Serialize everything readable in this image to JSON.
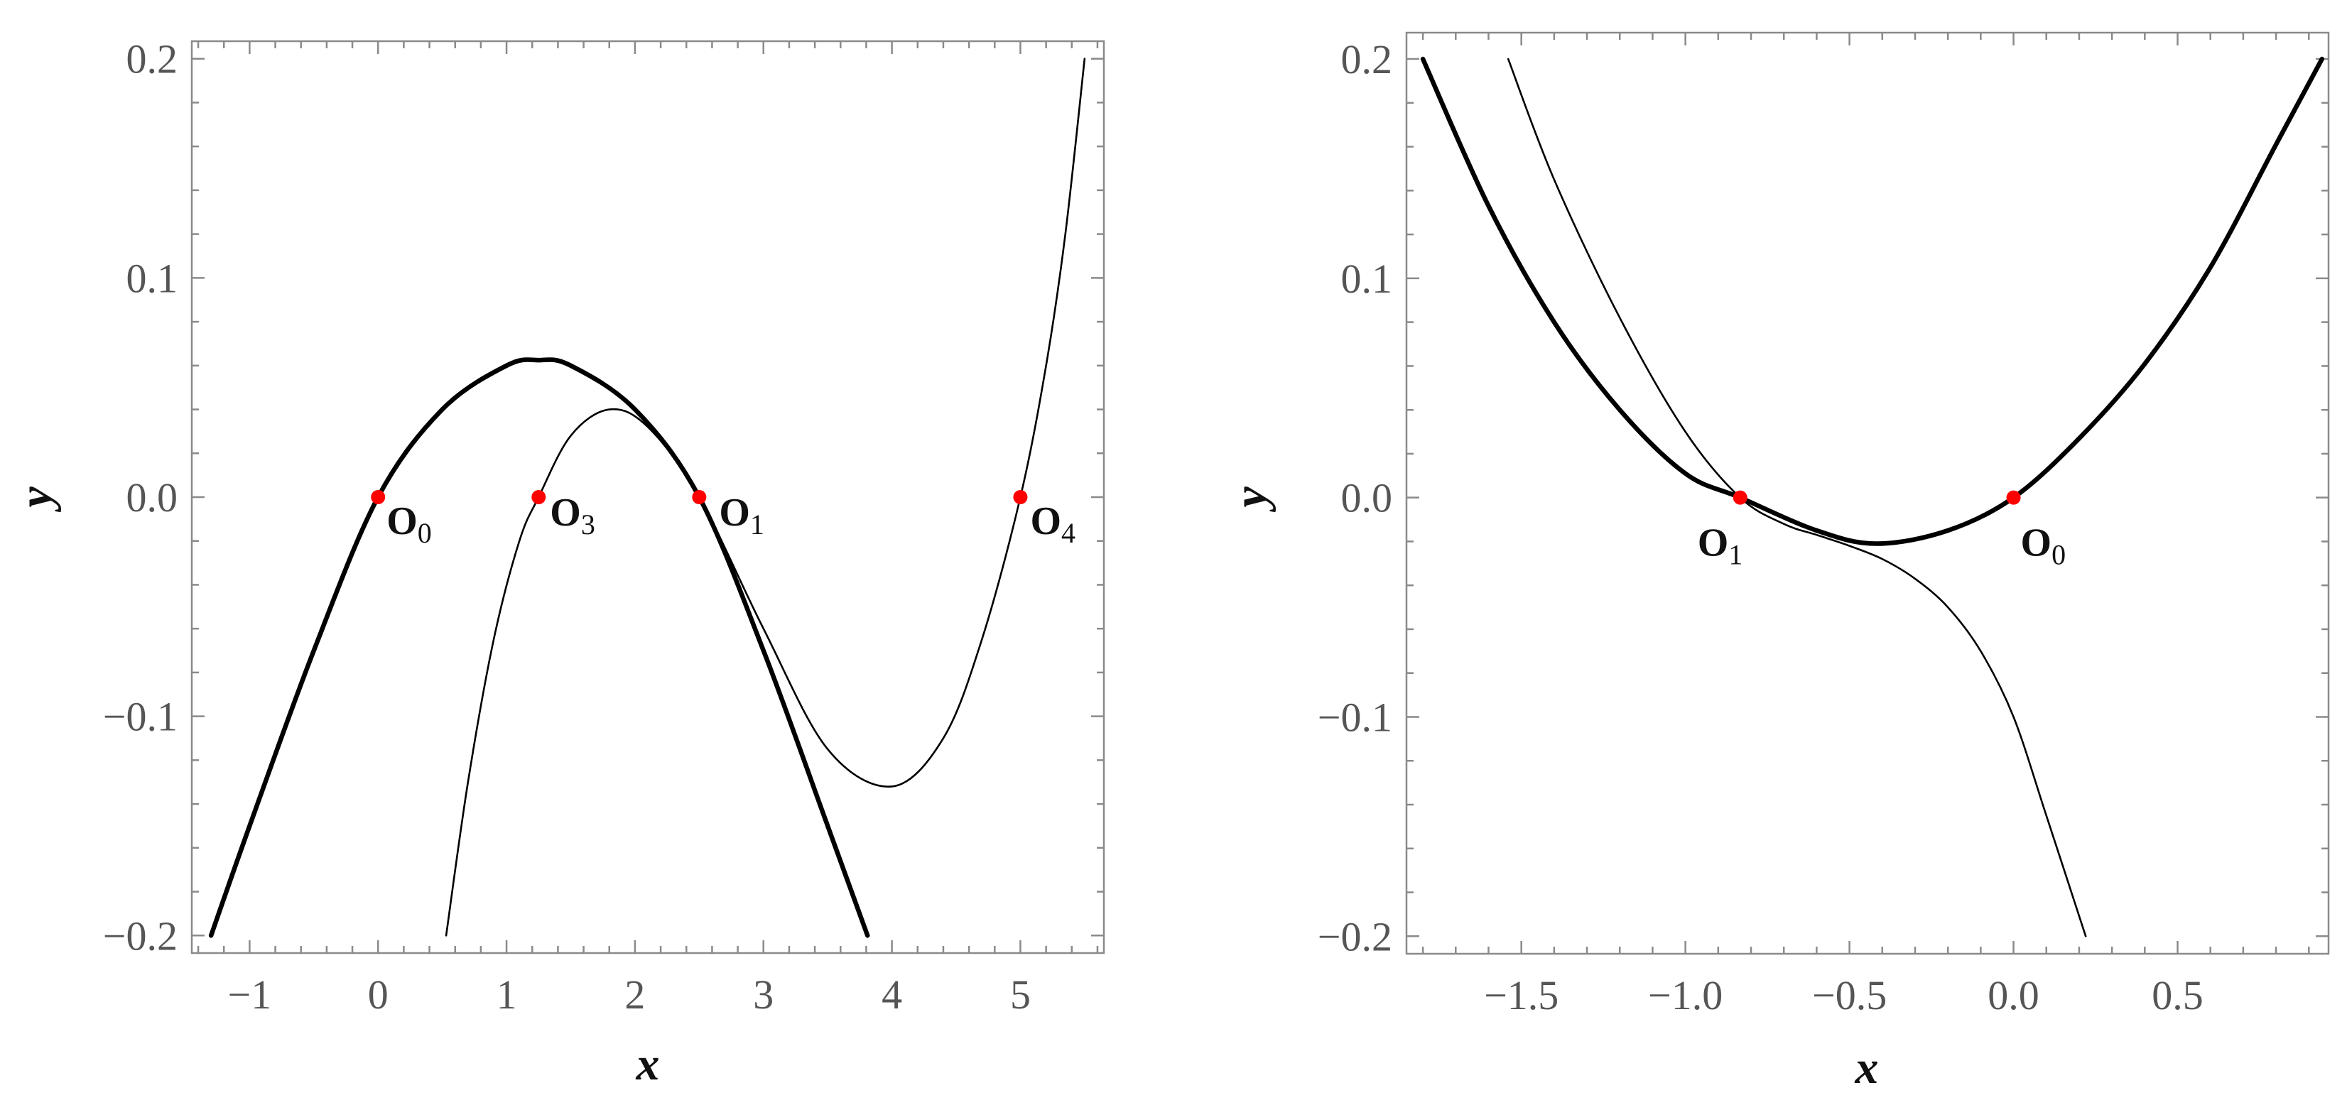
{
  "chart_data": [
    {
      "type": "line",
      "xlabel": "x",
      "ylabel": "y",
      "xlim": [
        -1.45,
        5.65
      ],
      "ylim": [
        -0.208,
        0.208
      ],
      "xticks": [
        -1,
        0,
        1,
        2,
        3,
        4,
        5
      ],
      "xtick_labels": [
        "−1",
        "0",
        "1",
        "2",
        "3",
        "4",
        "5"
      ],
      "yticks": [
        -0.2,
        -0.1,
        0.0,
        0.1,
        0.2
      ],
      "ytick_labels": [
        "−0.2",
        "−0.1",
        "0.0",
        "0.1",
        "0.2"
      ],
      "series": [
        {
          "style": "thick",
          "x": [
            -1.3,
            -1.0,
            -0.5,
            0.0,
            0.5,
            1.0,
            1.25,
            1.5,
            2.0,
            2.5,
            3.0,
            3.5,
            3.81
          ],
          "y": [
            -0.2,
            -0.15,
            -0.07,
            0.0,
            0.04,
            0.06,
            0.0625,
            0.06,
            0.04,
            0.0,
            -0.07,
            -0.15,
            -0.2
          ]
        },
        {
          "style": "thin",
          "x": [
            0.53,
            0.7,
            0.9,
            1.1,
            1.25,
            1.5,
            1.8,
            2.1,
            2.5,
            3.0,
            3.5,
            4.0,
            4.4,
            4.7,
            5.0,
            5.2,
            5.35,
            5.5
          ],
          "y": [
            -0.2,
            -0.13,
            -0.065,
            -0.02,
            0.0,
            0.028,
            0.04,
            0.032,
            0.0,
            -0.06,
            -0.115,
            -0.132,
            -0.11,
            -0.065,
            0.0,
            0.06,
            0.12,
            0.2
          ]
        }
      ],
      "points": [
        {
          "x": 0,
          "y": 0,
          "label": "O",
          "sub": "0"
        },
        {
          "x": 1.25,
          "y": 0,
          "label": "O",
          "sub": "3"
        },
        {
          "x": 2.5,
          "y": 0,
          "label": "O",
          "sub": "1"
        },
        {
          "x": 5.0,
          "y": 0,
          "label": "O",
          "sub": "4"
        }
      ],
      "point_color": "#ff0000"
    },
    {
      "type": "line",
      "xlabel": "x",
      "ylabel": "y",
      "xlim": [
        -1.85,
        0.96
      ],
      "ylim": [
        -0.208,
        0.212
      ],
      "xticks": [
        -1.5,
        -1.0,
        -0.5,
        0.0,
        0.5
      ],
      "xtick_labels": [
        "−1.5",
        "−1.0",
        "−0.5",
        "0.0",
        "0.5"
      ],
      "yticks": [
        -0.2,
        -0.1,
        0.0,
        0.1,
        0.2
      ],
      "ytick_labels": [
        "−0.2",
        "−0.1",
        "0.0",
        "0.1",
        "0.2"
      ],
      "series": [
        {
          "style": "thick",
          "x": [
            -1.8,
            -1.6,
            -1.4,
            -1.2,
            -1.0,
            -0.833,
            -0.6,
            -0.417,
            -0.2,
            0.0,
            0.2,
            0.4,
            0.6,
            0.8,
            0.94
          ],
          "y": [
            0.2,
            0.133,
            0.08,
            0.04,
            0.011,
            0.0,
            -0.015,
            -0.021,
            -0.015,
            0.0,
            0.027,
            0.061,
            0.105,
            0.161,
            0.2
          ]
        },
        {
          "style": "thin",
          "x": [
            -1.54,
            -1.4,
            -1.2,
            -1.0,
            -0.833,
            -0.7,
            -0.6,
            -0.5,
            -0.4,
            -0.3,
            -0.2,
            -0.1,
            0.0,
            0.1,
            0.22
          ],
          "y": [
            0.2,
            0.145,
            0.082,
            0.03,
            0.0,
            -0.012,
            -0.017,
            -0.022,
            -0.028,
            -0.037,
            -0.05,
            -0.07,
            -0.1,
            -0.145,
            -0.2
          ]
        }
      ],
      "points": [
        {
          "x": -0.833,
          "y": 0,
          "label": "O",
          "sub": "1"
        },
        {
          "x": 0.0,
          "y": 0,
          "label": "O",
          "sub": "0"
        }
      ],
      "point_color": "#ff0000"
    }
  ]
}
